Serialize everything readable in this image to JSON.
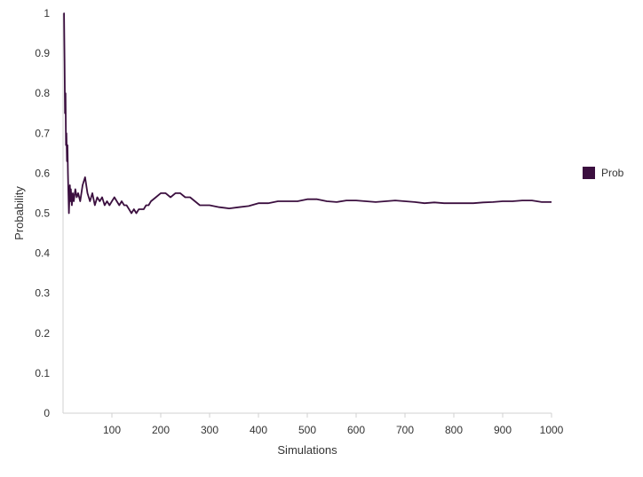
{
  "chart_data": {
    "type": "line",
    "title": "",
    "xlabel": "Simulations",
    "ylabel": "Probability",
    "xlim": [
      0,
      1000
    ],
    "ylim": [
      0,
      1
    ],
    "x_ticks": [
      100,
      200,
      300,
      400,
      500,
      600,
      700,
      800,
      900,
      1000
    ],
    "y_ticks": [
      0,
      0.1,
      0.2,
      0.3,
      0.4,
      0.5,
      0.6,
      0.7,
      0.8,
      0.9,
      1
    ],
    "grid": false,
    "legend": {
      "position": "right",
      "entries": [
        "Prob"
      ]
    },
    "series": [
      {
        "name": "Prob",
        "color": "#3b0f3f",
        "x": [
          1,
          2,
          3,
          4,
          5,
          6,
          7,
          8,
          9,
          10,
          11,
          12,
          13,
          14,
          15,
          16,
          18,
          20,
          22,
          25,
          28,
          31,
          35,
          40,
          45,
          50,
          55,
          60,
          65,
          70,
          75,
          80,
          85,
          90,
          95,
          100,
          105,
          110,
          115,
          120,
          125,
          130,
          135,
          140,
          145,
          150,
          155,
          160,
          165,
          170,
          175,
          180,
          190,
          200,
          210,
          220,
          230,
          240,
          250,
          260,
          270,
          280,
          290,
          300,
          320,
          340,
          360,
          380,
          400,
          420,
          440,
          460,
          480,
          500,
          520,
          540,
          560,
          580,
          600,
          620,
          640,
          660,
          680,
          700,
          720,
          740,
          760,
          780,
          800,
          820,
          840,
          860,
          880,
          900,
          920,
          940,
          960,
          980,
          1000
        ],
        "values": [
          1.0,
          1.0,
          0.88,
          0.75,
          0.8,
          0.67,
          0.7,
          0.63,
          0.67,
          0.6,
          0.55,
          0.5,
          0.54,
          0.57,
          0.53,
          0.56,
          0.52,
          0.55,
          0.53,
          0.56,
          0.54,
          0.55,
          0.53,
          0.57,
          0.59,
          0.55,
          0.53,
          0.55,
          0.52,
          0.54,
          0.53,
          0.54,
          0.52,
          0.53,
          0.52,
          0.53,
          0.54,
          0.53,
          0.52,
          0.53,
          0.52,
          0.52,
          0.51,
          0.5,
          0.51,
          0.5,
          0.51,
          0.51,
          0.51,
          0.52,
          0.52,
          0.53,
          0.54,
          0.55,
          0.55,
          0.54,
          0.55,
          0.55,
          0.54,
          0.54,
          0.53,
          0.52,
          0.52,
          0.52,
          0.515,
          0.512,
          0.515,
          0.518,
          0.525,
          0.525,
          0.53,
          0.53,
          0.53,
          0.535,
          0.535,
          0.53,
          0.528,
          0.532,
          0.532,
          0.53,
          0.528,
          0.53,
          0.532,
          0.53,
          0.528,
          0.525,
          0.527,
          0.525,
          0.525,
          0.525,
          0.525,
          0.527,
          0.528,
          0.53,
          0.53,
          0.532,
          0.532,
          0.528,
          0.528
        ]
      }
    ]
  }
}
